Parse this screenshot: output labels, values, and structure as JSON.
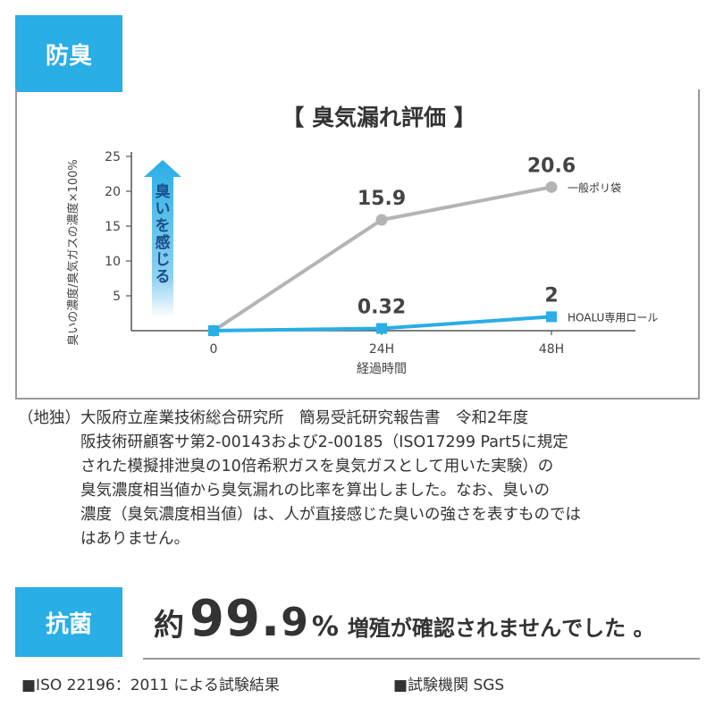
{
  "section1_tag": "防臭",
  "section2_tag": "抗菌",
  "chart_data": {
    "type": "line",
    "title": "【 臭気漏れ評価 】",
    "xlabel": "経過時間",
    "ylabel": "臭いの濃度/臭気ガスの濃度×100%",
    "categories": [
      "0",
      "24H",
      "48H"
    ],
    "ylim": [
      0,
      25
    ],
    "yticks": [
      5,
      10,
      15,
      20,
      25
    ],
    "grid": false,
    "arrow_label": "臭いを感じる",
    "series": [
      {
        "name": "一般ポリ袋",
        "values": [
          0,
          15.9,
          20.6
        ],
        "data_labels": [
          "",
          "15.9",
          "20.6"
        ],
        "color": "#b4b4b4",
        "marker": "circle"
      },
      {
        "name": "HOALU専用ロール",
        "values": [
          0,
          0.32,
          2
        ],
        "data_labels": [
          "",
          "0.32",
          "2"
        ],
        "color": "#29aee6",
        "marker": "square"
      }
    ]
  },
  "note": {
    "head": "（地独）",
    "lines": [
      "大阪府立産業技術総合研究所　簡易受託研究報告書　令和2年度",
      "阪技術研顧客サ第2-00143および2-00185（ISO17299  Part5に規定",
      "された模擬排泄臭の10倍希釈ガスを臭気ガスとして用いた実験）の",
      "臭気濃度相当値から臭気漏れの比率を算出しました。なお、臭いの",
      "濃度（臭気濃度相当値）は、人が直接感じた臭いの強さを表すものでは",
      "はありません。"
    ]
  },
  "result": {
    "prefix": "約",
    "number_int": "99.",
    "number_dec": "9",
    "unit": "%",
    "text": "増殖が確認されませんでした 。"
  },
  "footer": {
    "standard": "■ISO 22196：2011 による試験結果",
    "lab": "■試験機関 SGS"
  },
  "colors": {
    "accent": "#29aee6",
    "gray": "#b4b4b4"
  }
}
